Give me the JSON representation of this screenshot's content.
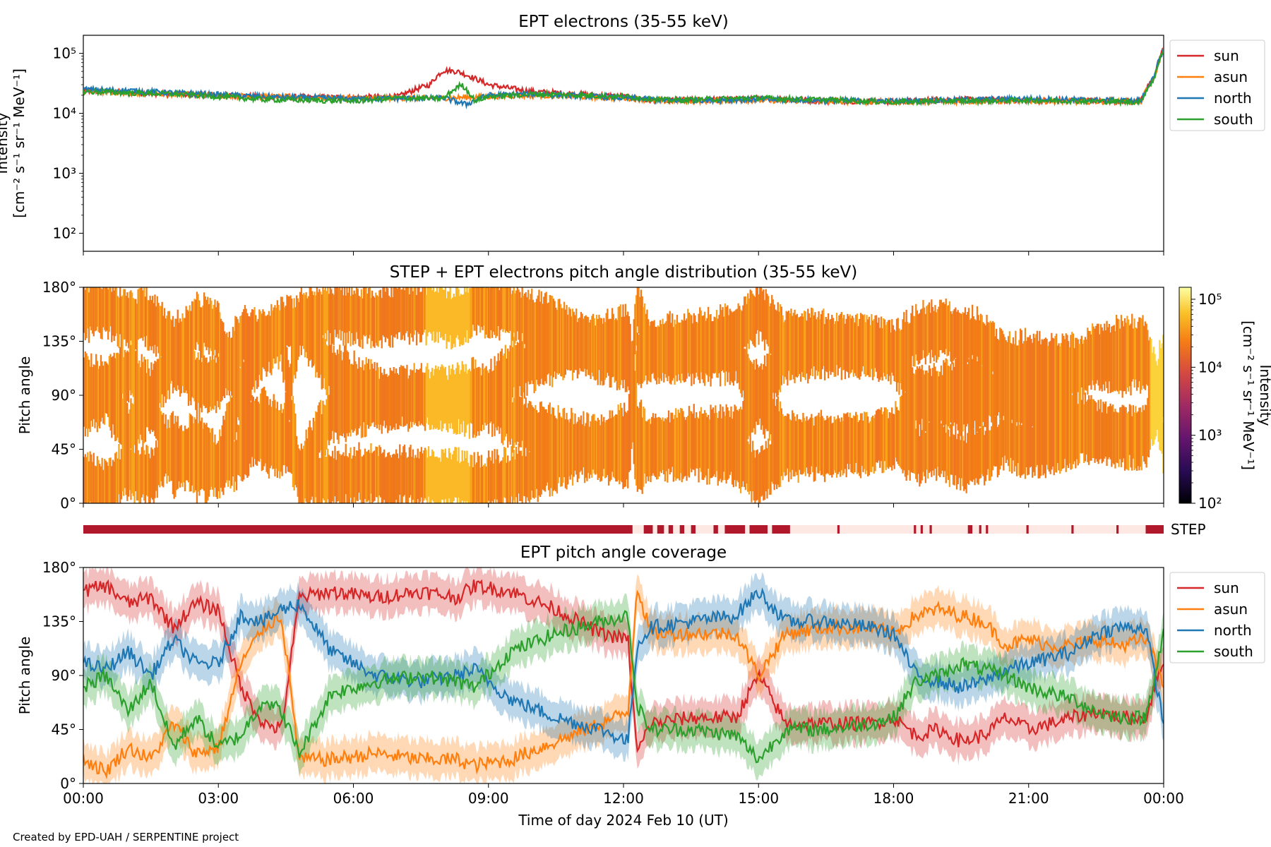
{
  "credit": "Created by EPD-UAH / SERPENTINE project",
  "colors": {
    "sun": "#d62728",
    "asun": "#ff7f0e",
    "north": "#1f77b4",
    "south": "#2ca02c",
    "pad_fill": "#f07d23",
    "step_on": "#b2182b",
    "step_off": "#fde8e4"
  },
  "chart_data": [
    {
      "type": "line",
      "title": "EPT electrons (35-55 keV)",
      "ylabel": "Intensity\n[cm⁻² s⁻¹ sr⁻¹ MeV⁻¹]",
      "yscale": "log",
      "ylim": [
        50,
        200000
      ],
      "yticks": [
        "10²",
        "10³",
        "10⁴",
        "10⁵"
      ],
      "x_unit": "hours",
      "xlim": [
        0,
        24
      ],
      "legend": "top-right (outside)",
      "series": [
        {
          "name": "sun",
          "color": "#d62728",
          "x": [
            0,
            1,
            2,
            3,
            4,
            5,
            6,
            7,
            7.7,
            8.0,
            8.3,
            8.7,
            9.0,
            9.5,
            10,
            11,
            12,
            12.5,
            13,
            14,
            15,
            16,
            17,
            18,
            19,
            20,
            21,
            22,
            23,
            23.5,
            23.8,
            24
          ],
          "y": [
            24000,
            22000,
            21000,
            20000,
            19000,
            18500,
            18500,
            19000,
            30000,
            52000,
            50000,
            38000,
            30000,
            26000,
            23000,
            21000,
            19000,
            16500,
            16500,
            17000,
            17500,
            16500,
            16000,
            15500,
            17000,
            17000,
            16500,
            16500,
            16000,
            16000,
            40000,
            120000
          ]
        },
        {
          "name": "asun",
          "color": "#ff7f0e",
          "x": [
            0,
            2,
            4,
            6,
            8,
            9,
            10,
            12,
            13,
            15,
            18,
            21,
            23.5,
            23.8,
            24
          ],
          "y": [
            23000,
            21000,
            19000,
            18000,
            18000,
            19000,
            20000,
            18000,
            16000,
            16500,
            15500,
            16000,
            15500,
            38000,
            110000
          ]
        },
        {
          "name": "north",
          "color": "#1f77b4",
          "x": [
            0,
            1,
            2,
            4,
            6,
            8,
            8.5,
            9,
            10,
            12,
            13,
            15,
            18,
            21,
            23.5,
            23.8,
            24
          ],
          "y": [
            25000,
            24000,
            22000,
            19000,
            17500,
            18000,
            14000,
            20000,
            21000,
            18000,
            16500,
            17000,
            16000,
            17500,
            16000,
            40000,
            115000
          ]
        },
        {
          "name": "south",
          "color": "#2ca02c",
          "x": [
            0,
            2,
            4,
            6,
            7,
            8,
            8.4,
            8.7,
            9,
            10,
            12,
            13,
            15,
            18,
            21,
            23.5,
            23.8,
            24
          ],
          "y": [
            23000,
            21000,
            17000,
            16000,
            18000,
            17500,
            30000,
            16000,
            19000,
            21000,
            19000,
            16500,
            18000,
            15500,
            16500,
            15500,
            38000,
            115000
          ]
        }
      ]
    },
    {
      "type": "heatmap",
      "title": "STEP + EPT electrons pitch angle distribution (35-55 keV)",
      "ylabel": "Pitch angle",
      "ylim": [
        0,
        180
      ],
      "yticks": [
        "0°",
        "45°",
        "90°",
        "135°",
        "180°"
      ],
      "xlim": [
        0,
        24
      ],
      "colorbar": {
        "label": "Intensity\n[cm⁻² s⁻¹ sr⁻¹ MeV⁻¹]",
        "scale": "log",
        "range": [
          100,
          150000
        ],
        "ticks": [
          "10²",
          "10³",
          "10⁴",
          "10⁵"
        ],
        "colormap": "inferno"
      },
      "step_label": "STEP",
      "step_coverage_hours": [
        [
          0,
          12.2
        ],
        [
          12.45,
          12.65
        ],
        [
          12.75,
          12.9
        ],
        [
          13.0,
          13.1
        ],
        [
          13.25,
          13.35
        ],
        [
          13.5,
          13.6
        ],
        [
          14.0,
          14.1
        ],
        [
          14.25,
          14.7
        ],
        [
          14.8,
          15.2
        ],
        [
          15.3,
          15.7
        ],
        [
          16.75,
          16.8
        ],
        [
          18.45,
          18.5
        ],
        [
          18.6,
          18.65
        ],
        [
          18.8,
          18.85
        ],
        [
          19.65,
          19.75
        ],
        [
          19.9,
          19.95
        ],
        [
          20.05,
          20.1
        ],
        [
          20.95,
          21.0
        ],
        [
          21.95,
          22.0
        ],
        [
          22.95,
          23.0
        ],
        [
          23.6,
          24.0
        ]
      ]
    },
    {
      "type": "line",
      "title": "EPT pitch angle coverage",
      "ylabel": "Pitch angle",
      "xlabel": "Time of day 2024 Feb 10 (UT)",
      "ylim": [
        0,
        180
      ],
      "yticks": [
        "0°",
        "45°",
        "90°",
        "135°",
        "180°"
      ],
      "xticks": [
        "00:00",
        "03:00",
        "06:00",
        "09:00",
        "12:00",
        "15:00",
        "18:00",
        "21:00",
        "00:00"
      ],
      "x_unit": "hours",
      "xlim": [
        0,
        24
      ],
      "band_halfwidth_deg": 15,
      "legend": "top-right (outside)",
      "series": [
        {
          "name": "sun",
          "color": "#d62728",
          "x": [
            0,
            0.5,
            1,
            1.5,
            2,
            2.5,
            3,
            3.5,
            4,
            4.4,
            4.8,
            5.5,
            6.5,
            7.5,
            8.3,
            8.7,
            9.5,
            10.5,
            11.5,
            12.1,
            12.3,
            12.6,
            13.5,
            14.5,
            15.0,
            15.6,
            16.5,
            17.5,
            18.0,
            18.5,
            19.0,
            19.5,
            20.0,
            20.5,
            21.0,
            21.5,
            22.0,
            22.5,
            23.0,
            23.6,
            24
          ],
          "y": [
            160,
            165,
            150,
            155,
            130,
            150,
            145,
            80,
            50,
            45,
            155,
            160,
            155,
            160,
            155,
            165,
            160,
            145,
            125,
            120,
            25,
            50,
            55,
            55,
            90,
            50,
            50,
            50,
            55,
            40,
            45,
            35,
            40,
            55,
            45,
            50,
            55,
            60,
            55,
            55,
            105
          ]
        },
        {
          "name": "asun",
          "color": "#ff7f0e",
          "x": [
            0,
            0.5,
            1,
            1.5,
            2,
            2.5,
            3,
            3.5,
            4,
            4.4,
            4.8,
            5.5,
            6.5,
            7.5,
            8.3,
            8.7,
            9.5,
            10.5,
            11.5,
            12.1,
            12.3,
            12.6,
            13.5,
            14.5,
            15.0,
            15.6,
            16.5,
            17.5,
            18.0,
            18.5,
            19.0,
            19.5,
            20.0,
            20.5,
            21.0,
            21.5,
            22.0,
            22.5,
            23.0,
            23.6,
            24
          ],
          "y": [
            20,
            10,
            30,
            20,
            50,
            25,
            30,
            100,
            130,
            140,
            20,
            20,
            25,
            20,
            20,
            15,
            20,
            35,
            50,
            60,
            165,
            125,
            125,
            125,
            90,
            125,
            130,
            130,
            125,
            140,
            145,
            140,
            135,
            115,
            120,
            115,
            115,
            120,
            115,
            120,
            85
          ]
        },
        {
          "name": "north",
          "color": "#1f77b4",
          "x": [
            0,
            0.5,
            1,
            1.5,
            2,
            2.5,
            3,
            3.5,
            4,
            4.4,
            4.8,
            5.5,
            6.5,
            7.5,
            8.3,
            8.7,
            9.5,
            10.5,
            11.5,
            12.1,
            12.3,
            12.6,
            13.5,
            14.5,
            15.0,
            15.6,
            16.5,
            17.5,
            18.0,
            18.5,
            19.0,
            19.5,
            20.0,
            20.5,
            21.0,
            21.5,
            22.0,
            22.5,
            23.0,
            23.6,
            24
          ],
          "y": [
            100,
            95,
            110,
            90,
            120,
            100,
            100,
            140,
            135,
            145,
            150,
            110,
            90,
            85,
            90,
            95,
            70,
            55,
            45,
            35,
            115,
            130,
            135,
            140,
            160,
            135,
            135,
            130,
            125,
            90,
            85,
            80,
            85,
            95,
            100,
            105,
            110,
            125,
            130,
            130,
            50
          ]
        },
        {
          "name": "south",
          "color": "#2ca02c",
          "x": [
            0,
            0.5,
            1,
            1.5,
            2,
            2.5,
            3,
            3.5,
            4,
            4.4,
            4.8,
            5.5,
            6.5,
            7.5,
            8.3,
            8.7,
            9.5,
            10.5,
            11.5,
            12.1,
            12.3,
            12.6,
            13.5,
            14.5,
            15.0,
            15.6,
            16.5,
            17.5,
            18.0,
            18.5,
            19.0,
            19.5,
            20.0,
            20.5,
            21.0,
            21.5,
            22.0,
            22.5,
            23.0,
            23.6,
            24
          ],
          "y": [
            80,
            90,
            60,
            85,
            30,
            55,
            30,
            40,
            70,
            60,
            25,
            75,
            85,
            90,
            85,
            80,
            110,
            125,
            135,
            140,
            65,
            45,
            45,
            40,
            20,
            45,
            45,
            50,
            55,
            85,
            90,
            100,
            95,
            90,
            80,
            75,
            70,
            60,
            55,
            55,
            125
          ]
        }
      ]
    }
  ]
}
